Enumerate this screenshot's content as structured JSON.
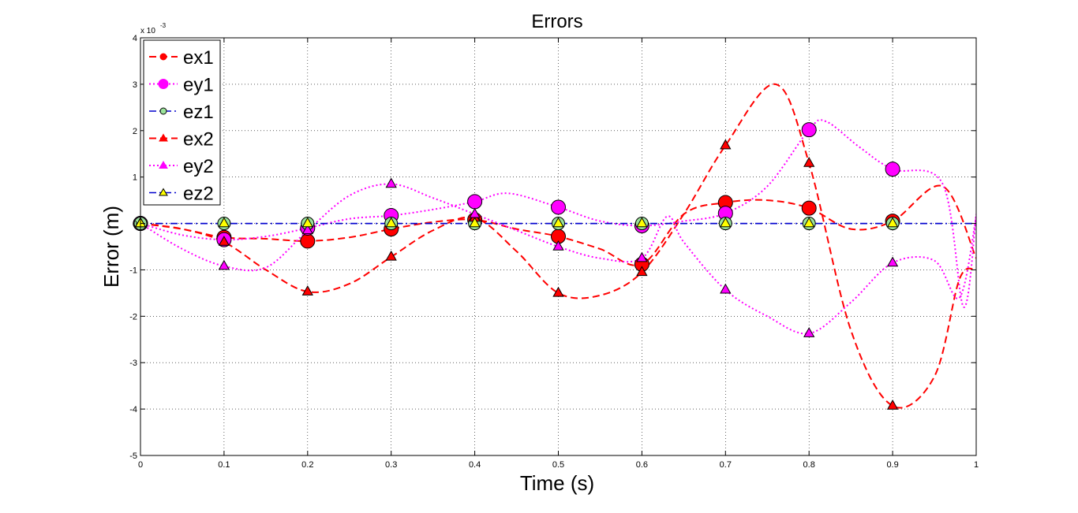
{
  "chart_data": {
    "type": "line",
    "title": "Errors",
    "xlabel": "Time (s)",
    "ylabel": "Error (m)",
    "y_multiplier_label": "x 10",
    "y_multiplier_exponent": "-3",
    "xlim": [
      0,
      1
    ],
    "ylim": [
      -5,
      4
    ],
    "x_ticks": [
      0,
      0.1,
      0.2,
      0.3,
      0.4,
      0.5,
      0.6,
      0.7,
      0.8,
      0.9,
      1
    ],
    "x_tick_labels": [
      "0",
      "0.1",
      "0.2",
      "0.3",
      "0.4",
      "0.5",
      "0.6",
      "0.7",
      "0.8",
      "0.9",
      "1"
    ],
    "y_ticks": [
      -5,
      -4,
      -3,
      -2,
      -1,
      0,
      1,
      2,
      3,
      4
    ],
    "y_tick_labels": [
      "-5",
      "-4",
      "-3",
      "-2",
      "-1",
      "0",
      "1",
      "2",
      "3",
      "4"
    ],
    "grid": true,
    "legend_position": "top-left",
    "marker_x": [
      0,
      0.1,
      0.2,
      0.3,
      0.4,
      0.5,
      0.6,
      0.7,
      0.8,
      0.9
    ],
    "series": [
      {
        "name": "ex1",
        "color": "#ff0000",
        "line_style": "dashed",
        "marker": "circle-large",
        "marker_values": [
          0,
          -0.3,
          -0.38,
          -0.12,
          0.08,
          -0.28,
          -0.88,
          0.45,
          0.33,
          0.05
        ],
        "curve": [
          [
            0,
            0
          ],
          [
            0.05,
            -0.12
          ],
          [
            0.1,
            -0.3
          ],
          [
            0.15,
            -0.33
          ],
          [
            0.2,
            -0.38
          ],
          [
            0.25,
            -0.3
          ],
          [
            0.3,
            -0.12
          ],
          [
            0.35,
            0.03
          ],
          [
            0.4,
            0.08
          ],
          [
            0.45,
            -0.12
          ],
          [
            0.5,
            -0.28
          ],
          [
            0.55,
            -0.55
          ],
          [
            0.6,
            -0.88
          ],
          [
            0.65,
            0.2
          ],
          [
            0.7,
            0.45
          ],
          [
            0.75,
            0.5
          ],
          [
            0.8,
            0.33
          ],
          [
            0.85,
            -0.12
          ],
          [
            0.9,
            0.05
          ],
          [
            0.96,
            0.8
          ],
          [
            1,
            -0.75
          ]
        ]
      },
      {
        "name": "ey1",
        "color": "#ff00ff",
        "line_style": "dotted",
        "marker": "circle-large",
        "marker_values": [
          0,
          -0.35,
          -0.1,
          0.17,
          0.47,
          0.35,
          -0.05,
          0.22,
          2.02,
          1.17
        ],
        "curve": [
          [
            0,
            0
          ],
          [
            0.05,
            -0.25
          ],
          [
            0.1,
            -0.35
          ],
          [
            0.15,
            -0.28
          ],
          [
            0.2,
            -0.1
          ],
          [
            0.25,
            0.1
          ],
          [
            0.3,
            0.17
          ],
          [
            0.35,
            0.3
          ],
          [
            0.4,
            0.47
          ],
          [
            0.44,
            0.65
          ],
          [
            0.5,
            0.35
          ],
          [
            0.55,
            0.05
          ],
          [
            0.6,
            -0.05
          ],
          [
            0.65,
            0.05
          ],
          [
            0.7,
            0.22
          ],
          [
            0.75,
            0.8
          ],
          [
            0.8,
            2.02
          ],
          [
            0.82,
            2.2
          ],
          [
            0.86,
            1.65
          ],
          [
            0.9,
            1.17
          ],
          [
            0.96,
            0.85
          ],
          [
            0.985,
            -1.8
          ],
          [
            1,
            0.2
          ]
        ]
      },
      {
        "name": "ez1",
        "color": "#0000cd",
        "line_style": "dash-dot",
        "marker": "circle-green",
        "marker_values": [
          0,
          0,
          0,
          0,
          0,
          0,
          0,
          0,
          0,
          0
        ],
        "curve": [
          [
            0,
            0
          ],
          [
            1,
            0
          ]
        ]
      },
      {
        "name": "ex2",
        "color": "#ff0000",
        "line_style": "dashed",
        "marker": "triangle-red",
        "marker_values": [
          0,
          -0.4,
          -1.47,
          -0.72,
          0.12,
          -1.5,
          -1.05,
          1.68,
          1.3,
          -3.93
        ],
        "curve": [
          [
            0,
            0
          ],
          [
            0.05,
            -0.12
          ],
          [
            0.1,
            -0.4
          ],
          [
            0.15,
            -1.0
          ],
          [
            0.2,
            -1.47
          ],
          [
            0.25,
            -1.3
          ],
          [
            0.3,
            -0.72
          ],
          [
            0.35,
            -0.15
          ],
          [
            0.4,
            0.12
          ],
          [
            0.45,
            -0.6
          ],
          [
            0.5,
            -1.5
          ],
          [
            0.55,
            -1.55
          ],
          [
            0.6,
            -1.05
          ],
          [
            0.65,
            0.2
          ],
          [
            0.7,
            1.68
          ],
          [
            0.76,
            3.0
          ],
          [
            0.8,
            1.3
          ],
          [
            0.85,
            -2.3
          ],
          [
            0.9,
            -3.93
          ],
          [
            0.95,
            -3.3
          ],
          [
            0.98,
            -1.2
          ],
          [
            1,
            -1.0
          ]
        ]
      },
      {
        "name": "ey2",
        "color": "#ff00ff",
        "line_style": "dotted",
        "marker": "triangle-magenta",
        "marker_values": [
          0,
          -0.92,
          -0.15,
          0.85,
          0.2,
          -0.5,
          -0.75,
          -1.43,
          -2.37,
          -0.85
        ],
        "curve": [
          [
            0,
            0
          ],
          [
            0.05,
            -0.55
          ],
          [
            0.1,
            -0.92
          ],
          [
            0.15,
            -0.95
          ],
          [
            0.2,
            -0.15
          ],
          [
            0.25,
            0.6
          ],
          [
            0.3,
            0.85
          ],
          [
            0.35,
            0.55
          ],
          [
            0.4,
            0.2
          ],
          [
            0.45,
            -0.15
          ],
          [
            0.5,
            -0.5
          ],
          [
            0.55,
            -0.75
          ],
          [
            0.6,
            -0.75
          ],
          [
            0.63,
            0.15
          ],
          [
            0.65,
            -0.4
          ],
          [
            0.7,
            -1.43
          ],
          [
            0.75,
            -2.0
          ],
          [
            0.8,
            -2.37
          ],
          [
            0.85,
            -1.7
          ],
          [
            0.9,
            -0.85
          ],
          [
            0.95,
            -0.8
          ],
          [
            0.98,
            -1.6
          ],
          [
            1,
            0.15
          ]
        ]
      },
      {
        "name": "ez2",
        "color": "#0000cd",
        "line_style": "dash-dot",
        "marker": "triangle-yellow",
        "marker_values": [
          0,
          0,
          0,
          0,
          0,
          0,
          0,
          0,
          0,
          0
        ],
        "curve": [
          [
            0,
            0
          ],
          [
            1,
            0
          ]
        ]
      }
    ]
  }
}
